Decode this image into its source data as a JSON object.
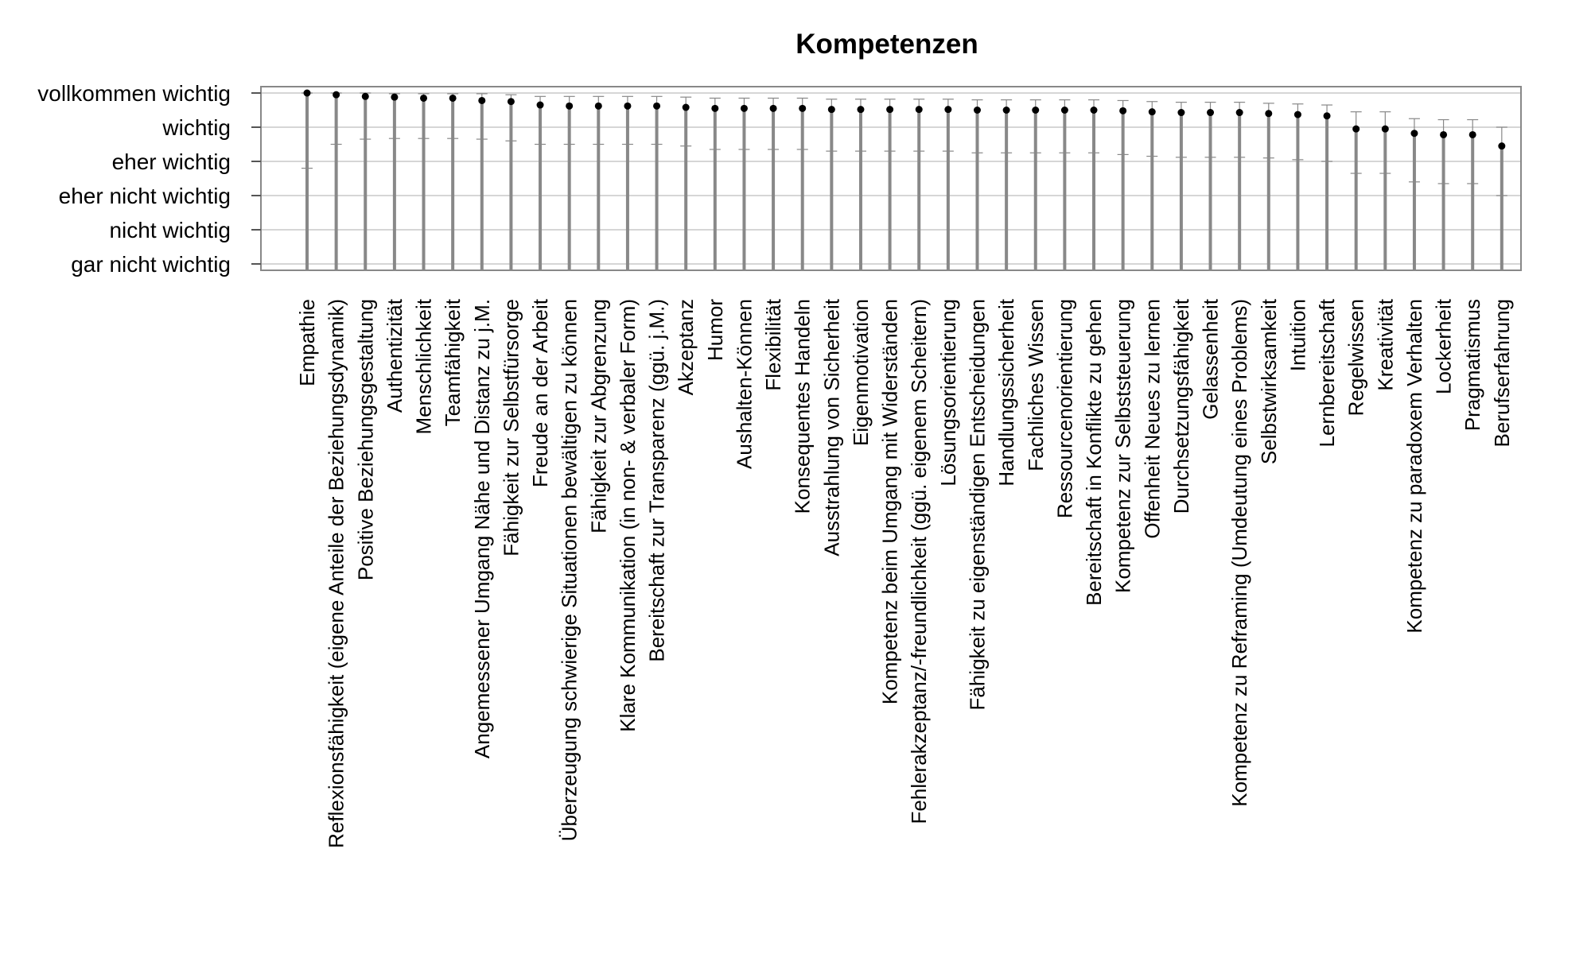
{
  "chart_data": {
    "type": "scatter",
    "title": "Kompetenzen",
    "xlabel": "",
    "ylabel": "",
    "ylim": [
      1,
      6
    ],
    "yticks": [
      {
        "value": 6,
        "label": "vollkommen wichtig"
      },
      {
        "value": 5,
        "label": "wichtig"
      },
      {
        "value": 4,
        "label": "eher wichtig"
      },
      {
        "value": 3,
        "label": "eher nicht wichtig"
      },
      {
        "value": 2,
        "label": "nicht wichtig"
      },
      {
        "value": 1,
        "label": "gar nicht wichtig"
      }
    ],
    "grid": true,
    "colors": {
      "bar": "#888888",
      "point": "#000000",
      "grid": "#c8c8c8",
      "frame": "#888888",
      "error": "#888888"
    },
    "items": [
      {
        "label": "Empathie",
        "mean": 6.0,
        "upper": 6.0,
        "lower": 3.8
      },
      {
        "label": "Reflexionsfähigkeit (eigene Anteile der Beziehungsdynamik)",
        "mean": 5.95,
        "upper": 6.0,
        "lower": 4.5
      },
      {
        "label": "Positive Beziehungsgestaltung",
        "mean": 5.9,
        "upper": 6.0,
        "lower": 4.65
      },
      {
        "label": "Authentizität",
        "mean": 5.88,
        "upper": 5.98,
        "lower": 4.67
      },
      {
        "label": "Menschlichkeit",
        "mean": 5.85,
        "upper": 5.98,
        "lower": 4.67
      },
      {
        "label": "Teamfähigkeit",
        "mean": 5.85,
        "upper": 5.98,
        "lower": 4.67
      },
      {
        "label": "Angemessener Umgang Nähe und Distanz zu j.M.",
        "mean": 5.78,
        "upper": 5.98,
        "lower": 4.65
      },
      {
        "label": "Fähigkeit zur Selbstfürsorge",
        "mean": 5.75,
        "upper": 5.95,
        "lower": 4.6
      },
      {
        "label": "Freude an der Arbeit",
        "mean": 5.65,
        "upper": 5.9,
        "lower": 4.5
      },
      {
        "label": "Überzeugung schwierige Situationen bewältigen zu können",
        "mean": 5.62,
        "upper": 5.9,
        "lower": 4.5
      },
      {
        "label": "Fähigkeit zur Abgrenzung",
        "mean": 5.62,
        "upper": 5.9,
        "lower": 4.5
      },
      {
        "label": "Klare Kommunikation (in non- & verbaler Form)",
        "mean": 5.62,
        "upper": 5.9,
        "lower": 4.5
      },
      {
        "label": "Bereitschaft zur Transparenz (ggü. j.M.)",
        "mean": 5.62,
        "upper": 5.9,
        "lower": 4.5
      },
      {
        "label": "Akzeptanz",
        "mean": 5.58,
        "upper": 5.88,
        "lower": 4.45
      },
      {
        "label": "Humor",
        "mean": 5.55,
        "upper": 5.85,
        "lower": 4.35
      },
      {
        "label": "Aushalten-Können",
        "mean": 5.55,
        "upper": 5.85,
        "lower": 4.35
      },
      {
        "label": "Flexibilität",
        "mean": 5.55,
        "upper": 5.85,
        "lower": 4.35
      },
      {
        "label": "Konsequentes Handeln",
        "mean": 5.55,
        "upper": 5.85,
        "lower": 4.35
      },
      {
        "label": "Ausstrahlung von Sicherheit",
        "mean": 5.52,
        "upper": 5.82,
        "lower": 4.3
      },
      {
        "label": "Eigenmotivation",
        "mean": 5.52,
        "upper": 5.82,
        "lower": 4.3
      },
      {
        "label": "Kompetenz beim Umgang mit Widerständen",
        "mean": 5.52,
        "upper": 5.82,
        "lower": 4.3
      },
      {
        "label": "Fehlerakzeptanz/-freundlichkeit (ggü. eigenem Scheitern)",
        "mean": 5.52,
        "upper": 5.82,
        "lower": 4.3
      },
      {
        "label": "Lösungsorientierung",
        "mean": 5.52,
        "upper": 5.82,
        "lower": 4.3
      },
      {
        "label": "Fähigkeit zu eigenständigen Entscheidungen",
        "mean": 5.5,
        "upper": 5.8,
        "lower": 4.25
      },
      {
        "label": "Handlungssicherheit",
        "mean": 5.5,
        "upper": 5.8,
        "lower": 4.25
      },
      {
        "label": "Fachliches Wissen",
        "mean": 5.5,
        "upper": 5.8,
        "lower": 4.25
      },
      {
        "label": "Ressourcenorientierung",
        "mean": 5.5,
        "upper": 5.8,
        "lower": 4.25
      },
      {
        "label": "Bereitschaft in Konflikte zu gehen",
        "mean": 5.5,
        "upper": 5.8,
        "lower": 4.25
      },
      {
        "label": "Kompetenz zur Selbststeuerung",
        "mean": 5.48,
        "upper": 5.78,
        "lower": 4.2
      },
      {
        "label": "Offenheit Neues zu lernen",
        "mean": 5.45,
        "upper": 5.75,
        "lower": 4.15
      },
      {
        "label": "Durchsetzungsfähigkeit",
        "mean": 5.43,
        "upper": 5.73,
        "lower": 4.12
      },
      {
        "label": "Gelassenheit",
        "mean": 5.43,
        "upper": 5.73,
        "lower": 4.12
      },
      {
        "label": "Kompetenz zu Reframing (Umdeutung eines Problems)",
        "mean": 5.43,
        "upper": 5.73,
        "lower": 4.12
      },
      {
        "label": "Selbstwirksamkeit",
        "mean": 5.4,
        "upper": 5.7,
        "lower": 4.1
      },
      {
        "label": "Intuition",
        "mean": 5.37,
        "upper": 5.68,
        "lower": 4.05
      },
      {
        "label": "Lernbereitschaft",
        "mean": 5.33,
        "upper": 5.65,
        "lower": 4.0
      },
      {
        "label": "Regelwissen",
        "mean": 4.95,
        "upper": 5.45,
        "lower": 3.65
      },
      {
        "label": "Kreativität",
        "mean": 4.95,
        "upper": 5.45,
        "lower": 3.65
      },
      {
        "label": "Kompetenz zu paradoxem Verhalten",
        "mean": 4.82,
        "upper": 5.25,
        "lower": 3.4
      },
      {
        "label": "Lockerheit",
        "mean": 4.78,
        "upper": 5.22,
        "lower": 3.35
      },
      {
        "label": "Pragmatismus",
        "mean": 4.78,
        "upper": 5.22,
        "lower": 3.35
      },
      {
        "label": "Berufserfahrung",
        "mean": 4.45,
        "upper": 5.0,
        "lower": 3.0
      }
    ]
  }
}
